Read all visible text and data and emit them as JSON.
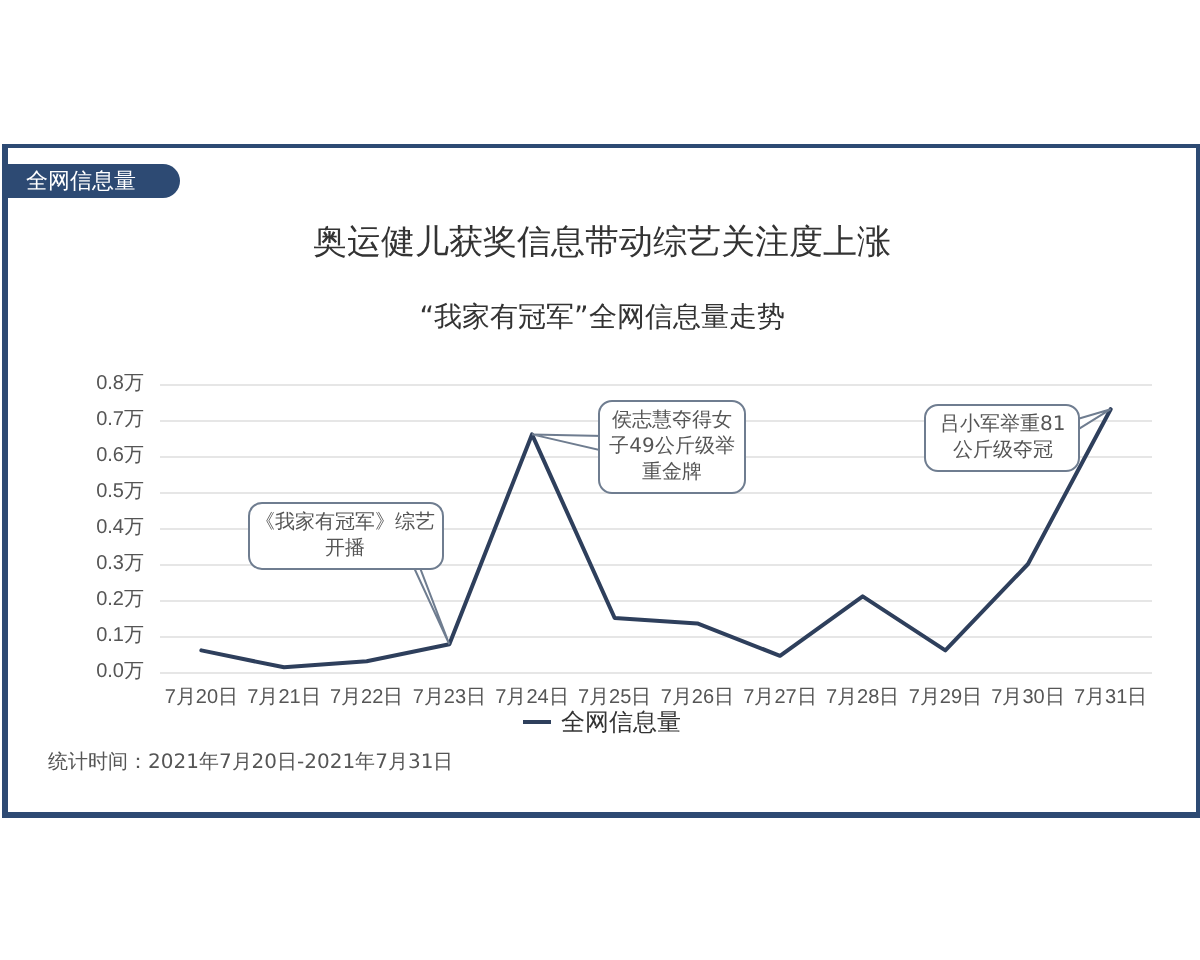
{
  "chart_data": {
    "type": "line",
    "title": "奥运健儿获奖信息带动综艺关注度上涨",
    "subtitle": "“我家有冠军”全网信息量走势",
    "categories": [
      "7月20日",
      "7月21日",
      "7月22日",
      "7月23日",
      "7月24日",
      "7月25日",
      "7月26日",
      "7月27日",
      "7月28日",
      "7月29日",
      "7月30日",
      "7月31日"
    ],
    "series": [
      {
        "name": "全网信息量",
        "color": "#2e3f5c",
        "values": [
          0.06,
          0.013,
          0.03,
          0.077,
          0.66,
          0.15,
          0.135,
          0.045,
          0.21,
          0.06,
          0.3,
          0.73
        ]
      }
    ],
    "ylim": [
      0,
      0.8
    ],
    "yticks": [
      {
        "value": 0,
        "label": "0.0万"
      },
      {
        "value": 0.1,
        "label": "0.1万"
      },
      {
        "value": 0.2,
        "label": "0.2万"
      },
      {
        "value": 0.3,
        "label": "0.3万"
      },
      {
        "value": 0.4,
        "label": "0.4万"
      },
      {
        "value": 0.5,
        "label": "0.5万"
      },
      {
        "value": 0.6,
        "label": "0.6万"
      },
      {
        "value": 0.7,
        "label": "0.7万"
      },
      {
        "value": 0.8,
        "label": "0.8万"
      }
    ],
    "grid": "y",
    "legend": "bottom",
    "line_style": "solid",
    "annotations": [
      "全网信息量",
      {
        "text": "《我家有冠军》综艺开播",
        "x": "7月23日",
        "y": 0.077
      },
      {
        "text": "侯志慧夺得女子49公斤级举重金牌",
        "x": "7月24日",
        "y": 0.66
      },
      {
        "text": "吕小军举重81公斤级夺冠",
        "x": "7月31日",
        "y": 0.73
      },
      "统计时间：2021年7月20日-2021年7月31日"
    ]
  }
}
